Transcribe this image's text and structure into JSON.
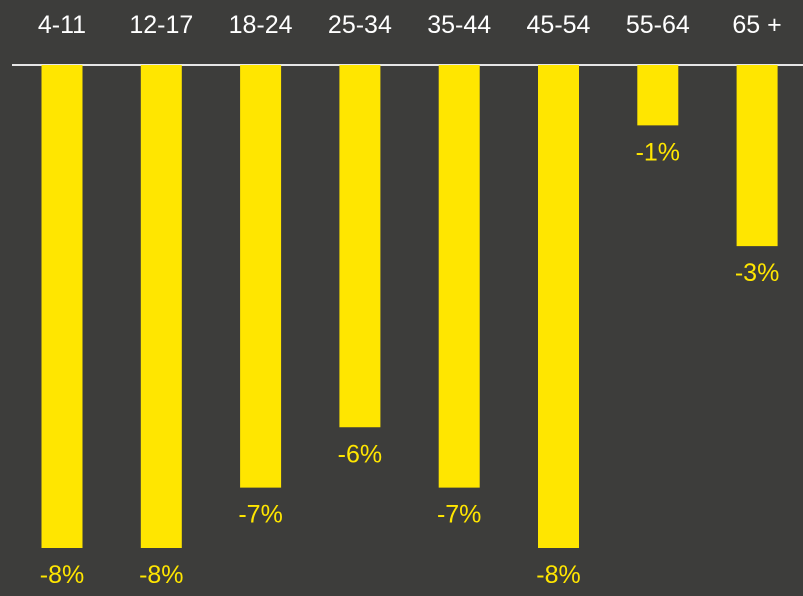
{
  "colors": {
    "background": "#3d3d3b",
    "bar": "#ffe600",
    "category_text": "#ffffff",
    "value_text": "#ffe600",
    "axis_line": "#e6e6e6"
  },
  "chart_data": {
    "type": "bar",
    "orientation": "vertical",
    "categories": [
      "4-11",
      "12-17",
      "18-24",
      "25-34",
      "35-44",
      "45-54",
      "55-64",
      "65 +"
    ],
    "values": [
      -8,
      -8,
      -7,
      -6,
      -7,
      -8,
      -1,
      -3
    ],
    "data_labels": [
      "-8%",
      "-8%",
      "-7%",
      "-6%",
      "-7%",
      "-8%",
      "-1%",
      "-3%"
    ],
    "category_axis_position": "top",
    "ylim": [
      -8,
      0
    ],
    "grid": false,
    "legend": "none",
    "title": "",
    "xlabel": "",
    "ylabel": ""
  }
}
